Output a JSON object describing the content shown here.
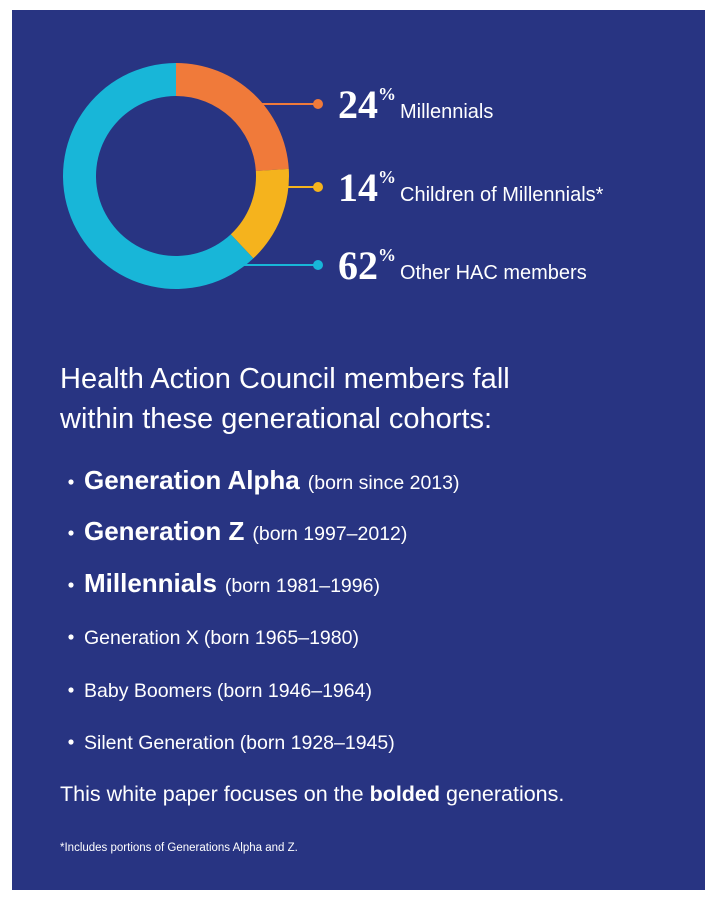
{
  "chart_data": {
    "type": "pie",
    "donut": true,
    "categories": [
      "Millennials",
      "Children of Millennials*",
      "Other HAC members"
    ],
    "values": [
      24,
      14,
      62
    ],
    "unit": "%",
    "colors": [
      "#f07a3a",
      "#f5b31d",
      "#18b6d8"
    ]
  },
  "cohorts": {
    "heading": [
      "Health Action Council members fall",
      "within these generational cohorts:"
    ],
    "items": [
      {
        "name": "Generation Alpha",
        "years": "(born since 2013)",
        "bold": true
      },
      {
        "name": "Generation Z",
        "years": "(born 1997–2012)",
        "bold": true
      },
      {
        "name": "Millennials",
        "years": "(born 1981–1996)",
        "bold": true
      },
      {
        "name": "Generation X",
        "years": "(born 1965–1980)",
        "bold": false
      },
      {
        "name": "Baby Boomers",
        "years": "(born 1946–1964)",
        "bold": false
      },
      {
        "name": "Silent Generation",
        "years": "(born 1928–1945)",
        "bold": false
      }
    ],
    "note": [
      "This white paper focuses on the",
      "bolded",
      "generations."
    ],
    "footnote": "*Includes portions of Generations Alpha and Z."
  }
}
